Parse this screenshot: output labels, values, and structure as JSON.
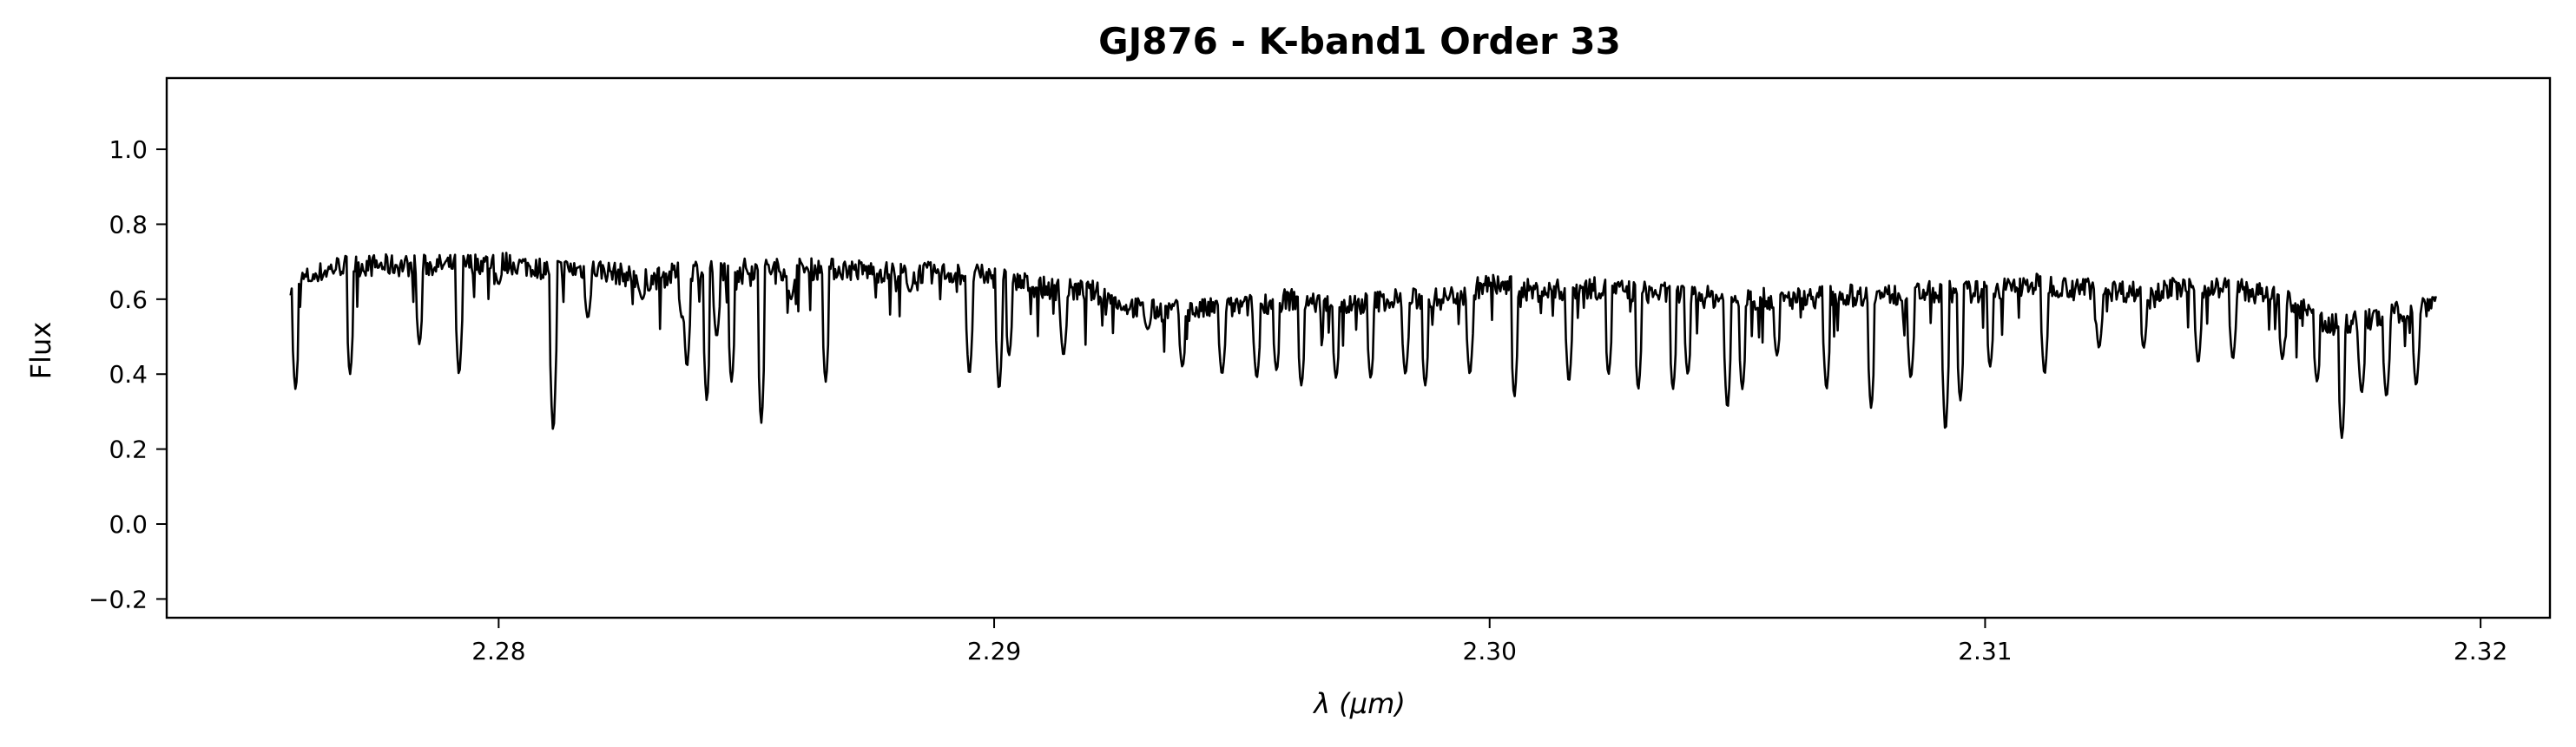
{
  "chart_data": {
    "type": "line",
    "title": "GJ876 - K-band1 Order 33",
    "xlabel": "λ (μm)",
    "ylabel": "Flux",
    "xlim": [
      2.2733,
      2.3214
    ],
    "ylim": [
      -0.25,
      1.19
    ],
    "x_ticks": [
      2.28,
      2.29,
      2.3,
      2.31,
      2.32
    ],
    "x_tick_labels": [
      "2.28",
      "2.29",
      "2.30",
      "2.31",
      "2.32"
    ],
    "y_ticks": [
      -0.2,
      0.0,
      0.2,
      0.4,
      0.6,
      0.8,
      1.0
    ],
    "y_tick_labels": [
      "−0.2",
      "0.0",
      "0.2",
      "0.4",
      "0.6",
      "0.8",
      "1.0"
    ],
    "grid": false,
    "line_color": "#000000",
    "series": [
      {
        "x_start": 2.2758,
        "x_end": 2.3191,
        "continuum": [
          [
            2.2758,
            0.64
          ],
          [
            2.2768,
            0.69
          ],
          [
            2.278,
            0.69
          ],
          [
            2.279,
            0.69
          ],
          [
            2.28,
            0.7
          ],
          [
            2.281,
            0.68
          ],
          [
            2.282,
            0.68
          ],
          [
            2.283,
            0.65
          ],
          [
            2.284,
            0.68
          ],
          [
            2.285,
            0.68
          ],
          [
            2.286,
            0.68
          ],
          [
            2.287,
            0.68
          ],
          [
            2.288,
            0.67
          ],
          [
            2.289,
            0.67
          ],
          [
            2.29,
            0.66
          ],
          [
            2.291,
            0.63
          ],
          [
            2.292,
            0.62
          ],
          [
            2.293,
            0.57
          ],
          [
            2.294,
            0.57
          ],
          [
            2.295,
            0.58
          ],
          [
            2.296,
            0.6
          ],
          [
            2.297,
            0.58
          ],
          [
            2.298,
            0.6
          ],
          [
            2.299,
            0.6
          ],
          [
            2.3,
            0.64
          ],
          [
            2.301,
            0.62
          ],
          [
            2.302,
            0.63
          ],
          [
            2.303,
            0.62
          ],
          [
            2.304,
            0.61
          ],
          [
            2.305,
            0.6
          ],
          [
            2.306,
            0.6
          ],
          [
            2.307,
            0.61
          ],
          [
            2.308,
            0.61
          ],
          [
            2.309,
            0.62
          ],
          [
            2.31,
            0.62
          ],
          [
            2.311,
            0.64
          ],
          [
            2.312,
            0.63
          ],
          [
            2.313,
            0.62
          ],
          [
            2.314,
            0.63
          ],
          [
            2.315,
            0.63
          ],
          [
            2.316,
            0.6
          ],
          [
            2.317,
            0.53
          ],
          [
            2.318,
            0.55
          ],
          [
            2.3191,
            0.6
          ]
        ],
        "noise_amplitude": 0.03,
        "absorption_lines": [
          [
            2.2759,
            0.36
          ],
          [
            2.277,
            0.4
          ],
          [
            2.2784,
            0.48
          ],
          [
            2.2792,
            0.4
          ],
          [
            2.28,
            0.64
          ],
          [
            2.2811,
            0.25
          ],
          [
            2.2818,
            0.55
          ],
          [
            2.2829,
            0.6
          ],
          [
            2.2837,
            0.55
          ],
          [
            2.2844,
            0.5
          ],
          [
            2.2838,
            0.42
          ],
          [
            2.2842,
            0.33
          ],
          [
            2.2847,
            0.38
          ],
          [
            2.2853,
            0.27
          ],
          [
            2.2859,
            0.6
          ],
          [
            2.2866,
            0.38
          ],
          [
            2.2883,
            0.62
          ],
          [
            2.2895,
            0.4
          ],
          [
            2.2901,
            0.36
          ],
          [
            2.2903,
            0.45
          ],
          [
            2.2914,
            0.45
          ],
          [
            2.2926,
            0.58
          ],
          [
            2.2931,
            0.52
          ],
          [
            2.2938,
            0.42
          ],
          [
            2.2946,
            0.4
          ],
          [
            2.2953,
            0.39
          ],
          [
            2.2957,
            0.41
          ],
          [
            2.2962,
            0.37
          ],
          [
            2.2969,
            0.39
          ],
          [
            2.2976,
            0.39
          ],
          [
            2.2983,
            0.4
          ],
          [
            2.2987,
            0.37
          ],
          [
            2.2996,
            0.4
          ],
          [
            2.3005,
            0.34
          ],
          [
            2.3016,
            0.38
          ],
          [
            2.3024,
            0.4
          ],
          [
            2.303,
            0.36
          ],
          [
            2.3037,
            0.36
          ],
          [
            2.304,
            0.4
          ],
          [
            2.3048,
            0.31
          ],
          [
            2.3051,
            0.36
          ],
          [
            2.3058,
            0.45
          ],
          [
            2.3068,
            0.36
          ],
          [
            2.3077,
            0.31
          ],
          [
            2.3085,
            0.39
          ],
          [
            2.3092,
            0.25
          ],
          [
            2.3095,
            0.33
          ],
          [
            2.3101,
            0.42
          ],
          [
            2.3112,
            0.4
          ],
          [
            2.3123,
            0.47
          ],
          [
            2.3132,
            0.47
          ],
          [
            2.3143,
            0.43
          ],
          [
            2.315,
            0.44
          ],
          [
            2.316,
            0.44
          ],
          [
            2.3167,
            0.38
          ],
          [
            2.3172,
            0.23
          ],
          [
            2.3176,
            0.35
          ],
          [
            2.3181,
            0.34
          ],
          [
            2.3187,
            0.37
          ],
          [
            2.3192,
            0.42
          ]
        ]
      }
    ]
  }
}
